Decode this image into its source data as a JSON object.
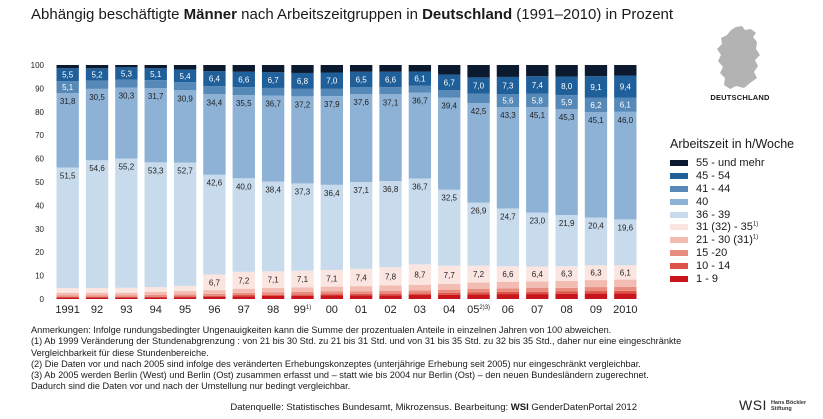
{
  "title": {
    "part1": "Abhängig beschäftigte ",
    "bold1": "Männer",
    "part2": " nach Arbeitszeitgruppen in ",
    "bold2": "Deutschland",
    "part3": " (1991–2010) in Prozent"
  },
  "map_label": "DEUTSCHLAND",
  "legend": {
    "title": "Arbeitszeit in h/Woche",
    "items": [
      {
        "label": "55 - und mehr",
        "sup": "",
        "color": "#0b1a2e"
      },
      {
        "label": "45 - 54",
        "sup": "",
        "color": "#1f5f9a"
      },
      {
        "label": "41 - 44",
        "sup": "",
        "color": "#5688b8"
      },
      {
        "label": "40",
        "sup": "",
        "color": "#8db2d6"
      },
      {
        "label": "36 - 39",
        "sup": "",
        "color": "#c8dbec"
      },
      {
        "label": "31 (32) - 35",
        "sup": "1)",
        "color": "#fbe5e0"
      },
      {
        "label": "21 - 30 (31)",
        "sup": "1)",
        "color": "#f3bcb3"
      },
      {
        "label": "15 -20",
        "sup": "",
        "color": "#e98c80"
      },
      {
        "label": "10 - 14",
        "sup": "",
        "color": "#dc5446"
      },
      {
        "label": "1 - 9",
        "sup": "",
        "color": "#c8141c"
      }
    ]
  },
  "chart_data": {
    "type": "bar",
    "stacked": true,
    "ylim": [
      0,
      100
    ],
    "y_ticks": [
      0,
      10,
      20,
      30,
      40,
      50,
      60,
      70,
      80,
      90,
      100
    ],
    "categories": [
      "1991",
      "92",
      "93",
      "94",
      "95",
      "96",
      "97",
      "98",
      "99",
      "00",
      "01",
      "02",
      "03",
      "04",
      "05",
      "06",
      "07",
      "08",
      "09",
      "2010"
    ],
    "category_sups": [
      "",
      "",
      "",
      "",
      "",
      "",
      "",
      "",
      "1)",
      "",
      "",
      "",
      "",
      "",
      "2)3)",
      "",
      "",
      "",
      "",
      ""
    ],
    "series": [
      {
        "name": "1 - 9",
        "values": [
          0.6,
          0.6,
          0.6,
          0.7,
          0.8,
          1.0,
          1.2,
          1.3,
          1.4,
          1.5,
          1.6,
          1.6,
          1.7,
          1.8,
          2.0,
          2.1,
          2.1,
          2.2,
          2.3,
          2.4
        ]
      },
      {
        "name": "10 - 14",
        "values": [
          0.3,
          0.3,
          0.3,
          0.3,
          0.4,
          0.4,
          0.5,
          0.5,
          0.6,
          0.6,
          0.6,
          0.7,
          0.7,
          0.8,
          0.9,
          1.0,
          1.0,
          1.0,
          1.1,
          1.1
        ]
      },
      {
        "name": "15 -20",
        "values": [
          0.6,
          0.6,
          0.6,
          0.7,
          0.7,
          0.8,
          0.9,
          1.0,
          1.0,
          1.1,
          1.1,
          1.2,
          1.3,
          1.4,
          1.5,
          1.5,
          1.6,
          1.6,
          1.7,
          1.7
        ]
      },
      {
        "name": "21 - 30 (31)",
        "values": [
          1.2,
          1.2,
          1.2,
          1.3,
          1.5,
          1.6,
          1.8,
          1.9,
          2.0,
          2.1,
          2.2,
          2.3,
          2.4,
          2.5,
          2.7,
          2.8,
          2.8,
          2.9,
          3.0,
          3.1
        ]
      },
      {
        "name": "31 (32) - 35",
        "values": [
          2.0,
          2.0,
          2.1,
          2.1,
          2.2,
          6.7,
          7.2,
          7.1,
          7.1,
          7.1,
          7.4,
          7.8,
          8.7,
          7.7,
          7.2,
          6.6,
          6.4,
          6.3,
          6.3,
          6.1
        ]
      },
      {
        "name": "36 - 39",
        "values": [
          51.5,
          54.6,
          55.2,
          53.3,
          52.7,
          42.6,
          40.0,
          38.4,
          37.3,
          36.4,
          37.1,
          36.8,
          36.7,
          32.5,
          26.9,
          24.7,
          23.0,
          21.9,
          20.4,
          19.6
        ]
      },
      {
        "name": "40",
        "values": [
          31.8,
          30.5,
          30.3,
          31.7,
          30.9,
          34.4,
          35.5,
          36.7,
          37.2,
          37.9,
          37.6,
          37.1,
          36.7,
          39.4,
          42.5,
          43.3,
          45.1,
          45.3,
          45.1,
          46.0
        ]
      },
      {
        "name": "41 - 44",
        "values": [
          5.1,
          3.6,
          3.4,
          3.4,
          3.5,
          3.5,
          3.4,
          3.3,
          3.2,
          3.1,
          3.0,
          3.0,
          2.9,
          3.1,
          4.0,
          5.6,
          5.8,
          5.9,
          6.2,
          6.1
        ]
      },
      {
        "name": "45 - 54",
        "values": [
          5.5,
          5.2,
          5.3,
          5.1,
          5.4,
          6.4,
          6.6,
          6.7,
          6.8,
          7.0,
          6.5,
          6.6,
          6.1,
          6.7,
          7.0,
          7.3,
          7.4,
          8.0,
          9.1,
          9.4
        ]
      },
      {
        "name": "55 - und mehr",
        "values": [
          1.4,
          1.4,
          1.0,
          1.4,
          1.9,
          2.6,
          2.9,
          3.1,
          3.4,
          3.2,
          2.9,
          2.9,
          2.8,
          4.1,
          5.3,
          5.1,
          4.8,
          4.9,
          4.8,
          4.5
        ]
      }
    ],
    "labeled_values": {
      "45 - 54": [
        "5,5",
        "5,2",
        "5,3",
        "5,1",
        "5,4",
        "6,4",
        "6,6",
        "6,7",
        "6,8",
        "7,0",
        "6,5",
        "6,6",
        "6,1",
        "6,7",
        "7,0",
        "7,3",
        "7,4",
        "8,0",
        "9,1",
        "9,4"
      ],
      "41 - 44": [
        "5,1",
        "",
        "",
        "",
        "",
        "",
        "",
        "",
        "",
        "",
        "",
        "",
        "",
        "",
        "",
        "5,6",
        "5,8",
        "5,9",
        "6,2",
        "6,1"
      ],
      "40": [
        "31,8",
        "30,5",
        "30,3",
        "31,7",
        "30,9",
        "34,4",
        "35,5",
        "36,7",
        "37,2",
        "37,9",
        "37,6",
        "37,1",
        "36,7",
        "39,4",
        "42,5",
        "43,3",
        "45,1",
        "45,3",
        "45,1",
        "46,0"
      ],
      "36 - 39": [
        "51,5",
        "54,6",
        "55,2",
        "53,3",
        "52,7",
        "42,6",
        "40,0",
        "38,4",
        "37,3",
        "36,4",
        "37,1",
        "36,8",
        "36,7",
        "32,5",
        "26,9",
        "24,7",
        "23,0",
        "21,9",
        "20,4",
        "19,6"
      ],
      "31 (32) - 35": [
        "",
        "",
        "",
        "",
        "",
        "6,7",
        "7,2",
        "7,1",
        "7,1",
        "7,1",
        "7,4",
        "7,8",
        "8,7",
        "7,7",
        "7,2",
        "6,6",
        "6,4",
        "6,3",
        "6,3",
        "6,1"
      ]
    }
  },
  "notes": [
    "Anmerkungen: Infolge rundungsbedingter Ungenauigkeiten kann die Summe der prozentualen Anteile in einzelnen Jahren von 100 abweichen.",
    "(1) Ab 1999 Veränderung der Stundenabgrenzung : von 21 bis 30 Std. zu 21 bis 31 Std. und von 31 bis 35 Std. zu 32 bis 35 Std., daher nur eine eingeschränkte",
    "Vergleichbarkeit für diese Stundenbereiche.",
    "(2) Die Daten vor und nach 2005 sind infolge des veränderten Erhebungskonzeptes (unterjährige Erhebung seit 2005) nur eingeschränkt vergleichbar.",
    "(3) Ab 2005 werden Berlin (West) und Berlin (Ost) zusammen erfasst und – statt wie bis 2004 nur Berlin (Ost) – den neuen Bundesländern zugerechnet.",
    "Dadurch sind die Daten vor und nach der Umstellung nur bedingt vergleichbar."
  ],
  "source": {
    "prefix": "Datenquelle: Statistisches Bundesamt, Mikrozensus. Bearbeitung: ",
    "bold": "WSI",
    "suffix": " GenderDatenPortal 2012"
  },
  "logo": {
    "main": "WSI",
    "sub1": "Hans Böckler",
    "sub2": "Stiftung"
  }
}
